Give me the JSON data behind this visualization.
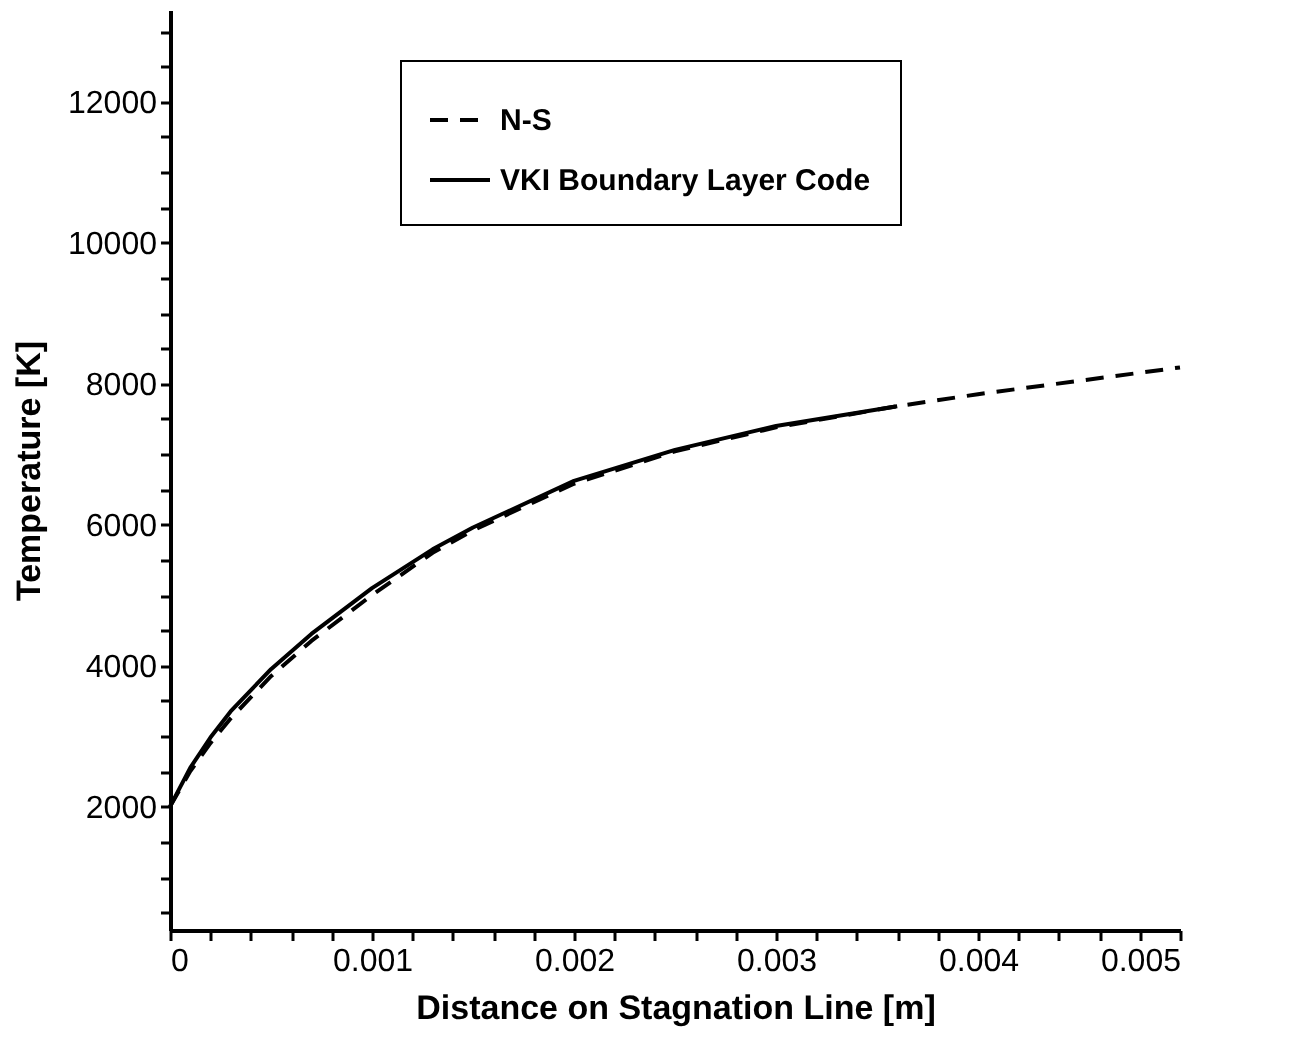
{
  "chart_data": {
    "type": "line",
    "xlabel": "Distance on Stagnation Line [m]",
    "ylabel": "Temperature [K]",
    "series": [
      {
        "name": "N-S",
        "color": "#000000",
        "line_style": "dashed",
        "x": [
          0,
          0.0001,
          0.0002,
          0.0003,
          0.0005,
          0.0007,
          0.001,
          0.0013,
          0.0015,
          0.002,
          0.0025,
          0.003,
          0.0036,
          0.004,
          0.0045,
          0.005
        ],
        "values": [
          2000,
          2500,
          2900,
          3250,
          3850,
          4350,
          5000,
          5600,
          5920,
          6580,
          7040,
          7380,
          7680,
          7850,
          8040,
          8230
        ]
      },
      {
        "name": "VKI Boundary Layer Code",
        "color": "#000000",
        "line_style": "solid",
        "x": [
          0,
          0.0001,
          0.0002,
          0.0003,
          0.0005,
          0.0007,
          0.001,
          0.0013,
          0.0015,
          0.002,
          0.0025,
          0.003,
          0.0036
        ],
        "values": [
          2000,
          2550,
          2980,
          3350,
          3950,
          4450,
          5100,
          5650,
          5960,
          6620,
          7060,
          7400,
          7680
        ]
      }
    ],
    "xlim": [
      0,
      0.005
    ],
    "xticks": [
      0,
      {
        "value": 0.0002,
        "label": null
      },
      {
        "value": 0.0004,
        "label": null
      },
      {
        "value": 0.0006,
        "label": null
      },
      {
        "value": 0.0008,
        "label": null
      },
      0.001,
      {
        "value": 0.0012,
        "label": null
      },
      {
        "value": 0.0014,
        "label": null
      },
      {
        "value": 0.0016,
        "label": null
      },
      {
        "value": 0.0018,
        "label": null
      },
      0.002,
      {
        "value": 0.0022,
        "label": null
      },
      {
        "value": 0.0024,
        "label": null
      },
      {
        "value": 0.0026,
        "label": null
      },
      {
        "value": 0.0028,
        "label": null
      },
      0.003,
      {
        "value": 0.0032,
        "label": null
      },
      {
        "value": 0.0034,
        "label": null
      },
      {
        "value": 0.0036,
        "label": null
      },
      {
        "value": 0.0038,
        "label": null
      },
      0.004,
      {
        "value": 0.0042,
        "label": null
      },
      {
        "value": 0.0044,
        "label": null
      },
      {
        "value": 0.0046,
        "label": null
      },
      {
        "value": 0.0048,
        "label": null
      },
      0.005
    ],
    "ylim": [
      250,
      13300
    ],
    "yticks": [
      {
        "value": 500,
        "label": null
      },
      {
        "value": 1000,
        "label": null
      },
      {
        "value": 1500,
        "label": null
      },
      2000,
      {
        "value": 2500,
        "label": null
      },
      {
        "value": 3000,
        "label": null
      },
      {
        "value": 3500,
        "label": null
      },
      4000,
      {
        "value": 4500,
        "label": null
      },
      {
        "value": 5000,
        "label": null
      },
      {
        "value": 5500,
        "label": null
      },
      6000,
      {
        "value": 6500,
        "label": null
      },
      {
        "value": 7000,
        "label": null
      },
      {
        "value": 7500,
        "label": null
      },
      8000,
      {
        "value": 8500,
        "label": null
      },
      {
        "value": 9000,
        "label": null
      },
      {
        "value": 9500,
        "label": null
      },
      10000,
      {
        "value": 10500,
        "label": null
      },
      {
        "value": 11000,
        "label": null
      },
      {
        "value": 11500,
        "label": null
      },
      12000,
      {
        "value": 12500,
        "label": null
      },
      {
        "value": 13000,
        "label": null
      }
    ],
    "grid": false,
    "legend": "top",
    "marker": "none"
  }
}
